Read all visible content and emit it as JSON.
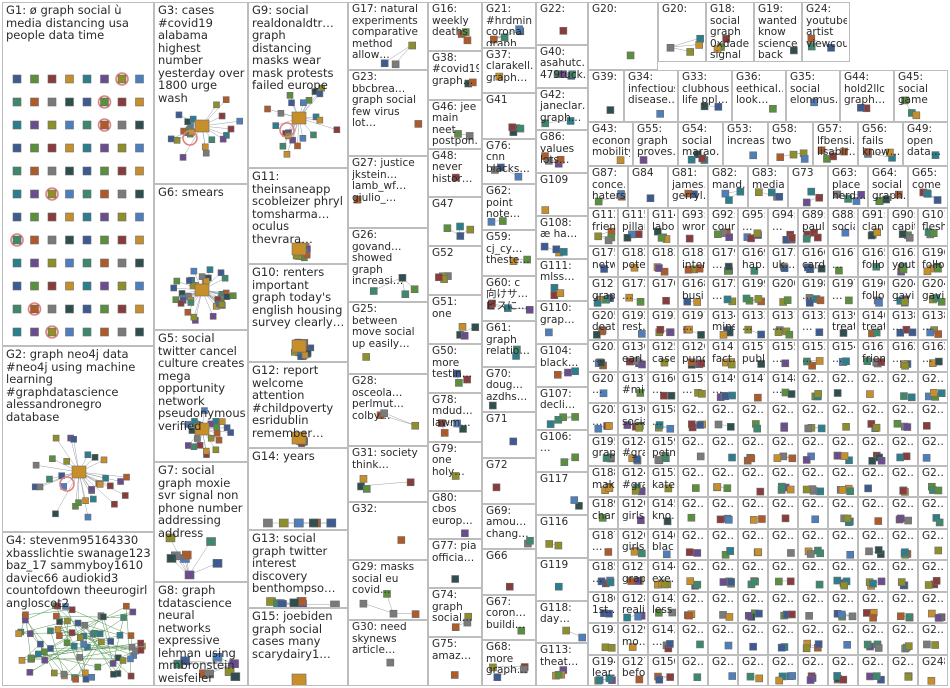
{
  "colors": {
    "border": "#bdbdbd",
    "edge": "#9aa0a6",
    "self_loop": "#e08080",
    "node_palette": [
      "#3b5b92",
      "#5a8f3c",
      "#8a3c3c",
      "#c78f2a",
      "#2a7f8f",
      "#6b4d8f",
      "#8f8f2a",
      "#4d7fbf",
      "#3c8a6b",
      "#b05a2a",
      "#7a7a7a",
      "#2f4f4f"
    ]
  },
  "groups": [
    {
      "id": "G1",
      "label": "G1: ø graph social ù media distancing usa people data time"
    },
    {
      "id": "G2",
      "label": "G2: graph neo4j data #neo4j using machine learning #graphdatascience alessandronegro database"
    },
    {
      "id": "G3",
      "label": "G3: cases #covid19 alabama highest number yesterday over 1800 urge wash"
    },
    {
      "id": "G4",
      "label": "G4: stevenm95164330 xbasslichtie swanage123 baz_17 sammyboy1610 daviec66 audiokid3 countofdown theeurogirl angloscot2"
    },
    {
      "id": "G5",
      "label": "G5: social twitter cancel culture creates mega opportunity network pseudonymous verified"
    },
    {
      "id": "G6",
      "label": "G6: smears"
    },
    {
      "id": "G7",
      "label": "G7: social graph moxie svr signal non phone number addressing address"
    },
    {
      "id": "G8",
      "label": "G8: graph tdatascience neural networks expressive lehman using mmbronstein weisfeiler databases"
    },
    {
      "id": "G9",
      "label": "G9: social realdonaldtr… graph distancing masks wear mask protests failed europe"
    },
    {
      "id": "G10",
      "label": "G10: renters important graph today's english housing survey clearly…"
    },
    {
      "id": "G11",
      "label": "G11: theinsaneapp scobleizer phryl tomsharma… oculus thevrara…"
    },
    {
      "id": "G12",
      "label": "G12: report welcome attention #childpoverty esridublin remember…"
    },
    {
      "id": "G13",
      "label": "G13: social graph twitter interest discovery benthompso…"
    },
    {
      "id": "G14",
      "label": "G14: years"
    },
    {
      "id": "G15",
      "label": "G15: joebiden graph social cases many scarydairy1…"
    },
    {
      "id": "G16",
      "label": "G16: weekly deaths"
    },
    {
      "id": "G17",
      "label": "G17: natural experiments comparative method allow…"
    },
    {
      "id": "G18",
      "label": "G18: social graph 0xdade signal make…"
    },
    {
      "id": "G19",
      "label": "G19: wanted know science back contagion…"
    },
    {
      "id": "G20",
      "label": "G20:"
    },
    {
      "id": "G21",
      "label": "G21: #hrdminister corona graph rising each…"
    },
    {
      "id": "G22",
      "label": "G22:"
    },
    {
      "id": "G23",
      "label": "G23: bbcbrea… graph social few virus lot…"
    },
    {
      "id": "G24",
      "label": "G24: youtube artist viewcount…"
    },
    {
      "id": "G25",
      "label": "G25: between move social up easily…"
    },
    {
      "id": "G26",
      "label": "G26: govand… showed graph increasi…"
    },
    {
      "id": "G27",
      "label": "G27: justice jkstein… lamb_wf… giulio_…"
    },
    {
      "id": "G28",
      "label": "G28: osceola… perlmut… colby…"
    },
    {
      "id": "G29",
      "label": "G29: masks social eu covid…"
    },
    {
      "id": "G30",
      "label": "G30: need skynews article…"
    },
    {
      "id": "G31",
      "label": "G31: society think…"
    },
    {
      "id": "G32",
      "label": "G32:"
    },
    {
      "id": "G33",
      "label": "G33: clubhouse life ppl…"
    },
    {
      "id": "G34",
      "label": "G34: infectious disease…"
    },
    {
      "id": "G35",
      "label": "G35: social elonmus…"
    },
    {
      "id": "G36",
      "label": "G36: eethical… look…"
    },
    {
      "id": "G37",
      "label": "G37: clarakell… graph…"
    },
    {
      "id": "G38",
      "label": "G38: #covid19 graph…"
    },
    {
      "id": "G39",
      "label": "G39:"
    },
    {
      "id": "G40",
      "label": "G40: asahutc… 479tuck…"
    },
    {
      "id": "G41",
      "label": "G41"
    },
    {
      "id": "G42",
      "label": "G42: janeclar… graph…"
    },
    {
      "id": "G43",
      "label": "G43: economic mobility…"
    },
    {
      "id": "G44",
      "label": "G44: hold2llc graph…"
    },
    {
      "id": "G45",
      "label": "G45: social game"
    },
    {
      "id": "G46",
      "label": "G46: jee main neet postpon…"
    },
    {
      "id": "G47",
      "label": "G47"
    },
    {
      "id": "G48",
      "label": "G48: never histor…"
    },
    {
      "id": "G49",
      "label": "G49: open data…"
    },
    {
      "id": "G50",
      "label": "G50: more testin…"
    },
    {
      "id": "G51",
      "label": "G51: one"
    },
    {
      "id": "G52",
      "label": "G52"
    },
    {
      "id": "G53",
      "label": "G53: increase"
    },
    {
      "id": "G54",
      "label": "G54: social marao…"
    },
    {
      "id": "G55",
      "label": "G55: graph proves…"
    },
    {
      "id": "G56",
      "label": "G56: fails know…"
    },
    {
      "id": "G57",
      "label": "G57: lfbensi… lisabir…"
    },
    {
      "id": "G58",
      "label": "G58: two"
    },
    {
      "id": "G59",
      "label": "G59: cj_cy… theste…"
    },
    {
      "id": "G60",
      "label": "G60: c 向けサ… ビスに…"
    },
    {
      "id": "G61",
      "label": "G61: graph relatio…"
    },
    {
      "id": "G62",
      "label": "G62: point note…"
    },
    {
      "id": "G63",
      "label": "G63: place herd…"
    },
    {
      "id": "G64",
      "label": "G64: social graph…"
    },
    {
      "id": "G65",
      "label": "G65: come"
    },
    {
      "id": "G66",
      "label": "G66"
    },
    {
      "id": "G67",
      "label": "G67: coron… buildi…"
    },
    {
      "id": "G68",
      "label": "G68: more graph…"
    },
    {
      "id": "G69",
      "label": "G69: amou… chang…"
    },
    {
      "id": "G70",
      "label": "G70: doug… azdhs…"
    },
    {
      "id": "G71",
      "label": "G71"
    },
    {
      "id": "G72",
      "label": "G72"
    },
    {
      "id": "G73",
      "label": "G73"
    },
    {
      "id": "G74",
      "label": "G74: graph social…"
    },
    {
      "id": "G75",
      "label": "G75: amaz…"
    },
    {
      "id": "G76",
      "label": "G76: cnn blacks…"
    },
    {
      "id": "G77",
      "label": "G77: pia officia…"
    },
    {
      "id": "G78",
      "label": "G78: mdud… lawm…"
    },
    {
      "id": "G79",
      "label": "G79: one holy…"
    },
    {
      "id": "G80",
      "label": "G80: cbos europ…"
    },
    {
      "id": "G81",
      "label": "G81: james… gerryl…"
    },
    {
      "id": "G82",
      "label": "G82: mand…"
    },
    {
      "id": "G83",
      "label": "G83: media"
    },
    {
      "id": "G84",
      "label": "G84"
    },
    {
      "id": "G85",
      "label": "G85"
    },
    {
      "id": "G86",
      "label": "G86: values lots…"
    },
    {
      "id": "G87",
      "label": "G87: conce… haters…"
    },
    {
      "id": "G88",
      "label": "G88: social"
    },
    {
      "id": "G89",
      "label": "G89: paul…"
    },
    {
      "id": "G90",
      "label": "G90: capit…"
    },
    {
      "id": "G91",
      "label": "G91: clan"
    },
    {
      "id": "G92",
      "label": "G92: coun…"
    },
    {
      "id": "G93",
      "label": "G93: wrong"
    },
    {
      "id": "G94",
      "label": "G94: …"
    },
    {
      "id": "G95",
      "label": "G95: …"
    },
    {
      "id": "G96",
      "label": "G96: alwa… che…"
    },
    {
      "id": "G97",
      "label": "G97: east mtra…"
    },
    {
      "id": "G98",
      "label": "G98: social dev…"
    },
    {
      "id": "G99",
      "label": "G99: setu… scre…"
    },
    {
      "id": "G100",
      "label": "G100: …"
    },
    {
      "id": "G101",
      "label": "G101: flesh"
    },
    {
      "id": "G102",
      "label": "G102: …"
    },
    {
      "id": "G103",
      "label": "G103: …"
    },
    {
      "id": "G104",
      "label": "G104: black…"
    },
    {
      "id": "G105",
      "label": "G105: …"
    },
    {
      "id": "G106",
      "label": "G106: …"
    },
    {
      "id": "G107",
      "label": "G107: decli…"
    },
    {
      "id": "G108",
      "label": "G108: æ ha…"
    },
    {
      "id": "G109",
      "label": "G109"
    },
    {
      "id": "G110",
      "label": "G110: grap…"
    },
    {
      "id": "G111",
      "label": "G111: mlss…"
    },
    {
      "id": "G112",
      "label": "G112: frien…"
    },
    {
      "id": "G113",
      "label": "G113: theat…"
    },
    {
      "id": "G114",
      "label": "G114: labor…"
    },
    {
      "id": "G115",
      "label": "G115: pillar…"
    },
    {
      "id": "G116",
      "label": "G116"
    },
    {
      "id": "G117",
      "label": "G117"
    },
    {
      "id": "G118",
      "label": "G118: day…"
    },
    {
      "id": "G119",
      "label": "G119"
    },
    {
      "id": "G120",
      "label": "G120: girls"
    },
    {
      "id": "G121",
      "label": "G121: grap…"
    },
    {
      "id": "G124",
      "label": "G124: #gra…"
    },
    {
      "id": "G125",
      "label": "G125: case…"
    },
    {
      "id": "G126",
      "label": "G126: punch"
    },
    {
      "id": "G127",
      "label": "G127: befo…"
    },
    {
      "id": "G128",
      "label": "G128: reali…"
    },
    {
      "id": "G129",
      "label": "G129: mo…"
    },
    {
      "id": "G130",
      "label": "G130: social"
    },
    {
      "id": "G131",
      "label": "G131: …"
    },
    {
      "id": "G132",
      "label": "G132: …"
    },
    {
      "id": "G133",
      "label": "G133: …"
    },
    {
      "id": "G134",
      "label": "G134: mins"
    },
    {
      "id": "G135",
      "label": "G135: fact…"
    },
    {
      "id": "G136",
      "label": "G136: earl…"
    },
    {
      "id": "G137",
      "label": "G137: #mic…"
    },
    {
      "id": "G138",
      "label": "G138: …"
    },
    {
      "id": "G139",
      "label": "G139: treat…"
    },
    {
      "id": "G140",
      "label": "G140: treat…"
    },
    {
      "id": "G141",
      "label": "G141: fact…"
    },
    {
      "id": "G142",
      "label": "G142: less"
    },
    {
      "id": "G143",
      "label": "G143: …"
    },
    {
      "id": "G144",
      "label": "G144: exe…"
    },
    {
      "id": "G145",
      "label": "G145: kno…"
    },
    {
      "id": "G146",
      "label": "G146: blac…"
    },
    {
      "id": "G147",
      "label": "G147"
    },
    {
      "id": "G148",
      "label": "G148: …"
    },
    {
      "id": "G149",
      "label": "G149: …"
    },
    {
      "id": "G150",
      "label": "G150"
    },
    {
      "id": "G151",
      "label": "G151: …"
    },
    {
      "id": "G152",
      "label": "G152: katel…"
    },
    {
      "id": "G153",
      "label": "G153: …"
    },
    {
      "id": "G154",
      "label": "G154: …"
    },
    {
      "id": "G155",
      "label": "G155: …"
    },
    {
      "id": "G157",
      "label": "G157: publi…"
    },
    {
      "id": "G158",
      "label": "G158: …"
    },
    {
      "id": "G159",
      "label": "G159: petn…"
    },
    {
      "id": "G160",
      "label": "G160: …"
    },
    {
      "id": "G161",
      "label": "G161: frien…"
    },
    {
      "id": "G162",
      "label": "G162: …"
    },
    {
      "id": "G163",
      "label": "G163: yout…"
    },
    {
      "id": "G165",
      "label": "G165: follow"
    },
    {
      "id": "G166",
      "label": "G166: card"
    },
    {
      "id": "G167",
      "label": "G167: …"
    },
    {
      "id": "G168",
      "label": "G168: busi…"
    },
    {
      "id": "G169",
      "label": "G169: hap…"
    },
    {
      "id": "G170",
      "label": "G170"
    },
    {
      "id": "G172",
      "label": "G172: …"
    },
    {
      "id": "G173",
      "label": "G173: uk…"
    },
    {
      "id": "G175",
      "label": "G175: netw…"
    },
    {
      "id": "G179",
      "label": "G179: …"
    },
    {
      "id": "G181",
      "label": "G181: inter…"
    },
    {
      "id": "G182",
      "label": "G182: pote…"
    },
    {
      "id": "G183",
      "label": "G183"
    },
    {
      "id": "G185",
      "label": "G185: …"
    },
    {
      "id": "G186",
      "label": "G186: 1st…"
    },
    {
      "id": "G187",
      "label": "G187: …"
    },
    {
      "id": "G188",
      "label": "G188: mak…"
    },
    {
      "id": "G189",
      "label": "G189: char…"
    },
    {
      "id": "G191",
      "label": "G191: …"
    },
    {
      "id": "G192",
      "label": "G192: rest…"
    },
    {
      "id": "G193",
      "label": "G193"
    },
    {
      "id": "G194",
      "label": "G194: lear…"
    },
    {
      "id": "G195",
      "label": "G195: grap…"
    },
    {
      "id": "G196",
      "label": "G196: follo…"
    },
    {
      "id": "G197",
      "label": "G197: …"
    },
    {
      "id": "G198",
      "label": "G198: …"
    },
    {
      "id": "G199",
      "label": "G199"
    },
    {
      "id": "G200",
      "label": "G200"
    },
    {
      "id": "G201",
      "label": "G201: …"
    },
    {
      "id": "G202",
      "label": "G202: …"
    },
    {
      "id": "G203",
      "label": "G203: …"
    },
    {
      "id": "G204",
      "label": "G204: gavi…"
    },
    {
      "id": "G205",
      "label": "G205: deat…"
    },
    {
      "id": "G206",
      "label": "G206: …"
    },
    {
      "id": "G248",
      "label": "G248…"
    },
    {
      "id": "G2x",
      "label": "G2…"
    }
  ]
}
